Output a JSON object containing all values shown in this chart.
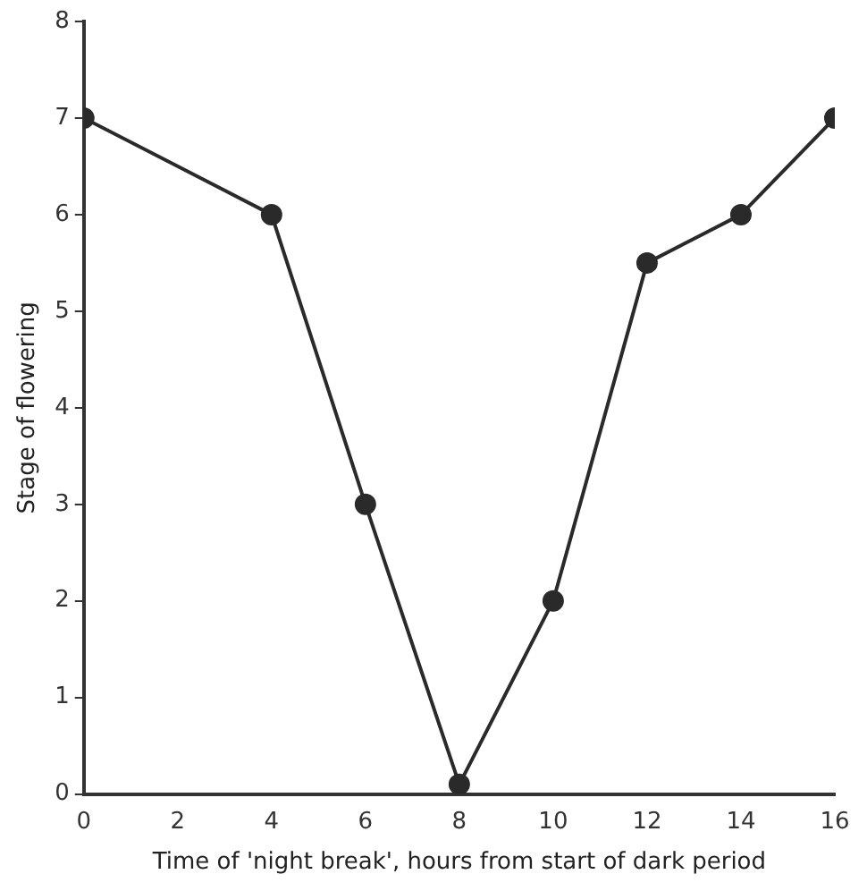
{
  "chart_data": {
    "type": "line",
    "xlabel": "Time of 'night break', hours from start of dark period",
    "ylabel": "Stage of flowering",
    "x": [
      0,
      4,
      6,
      8,
      10,
      12,
      14,
      16
    ],
    "series": [
      {
        "color": "#2a2a2a",
        "values": [
          7,
          6,
          3,
          0.1,
          2,
          5.5,
          6,
          7
        ]
      }
    ],
    "xlim": [
      0,
      16
    ],
    "xticks": [
      0,
      2,
      4,
      6,
      8,
      10,
      12,
      14,
      16
    ],
    "ylim": [
      0,
      8
    ],
    "yticks": [
      0,
      1,
      2,
      3,
      4,
      5,
      6,
      7,
      8
    ],
    "grid": false,
    "legend": false,
    "marker": "circle",
    "line_style": "solid"
  }
}
